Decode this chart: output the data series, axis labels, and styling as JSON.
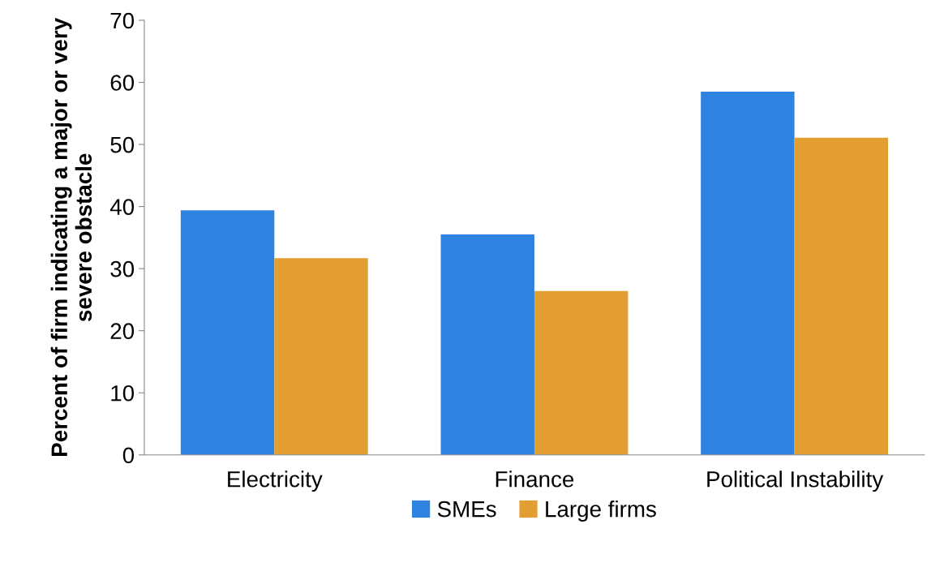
{
  "chart_data": {
    "type": "bar",
    "categories": [
      "Electricity",
      "Finance",
      "Political Instability"
    ],
    "series": [
      {
        "name": "SMEs",
        "color": "#2e83e0",
        "values": [
          39.4,
          35.5,
          58.5
        ]
      },
      {
        "name": "Large firms",
        "color": "#e39e32",
        "values": [
          31.7,
          26.4,
          51.1
        ]
      }
    ],
    "ylabel": "Percent of firm indicating a major or very severe obstacle",
    "ylim": [
      0,
      70
    ],
    "yticks": [
      0,
      10,
      20,
      30,
      40,
      50,
      60,
      70
    ],
    "grid": false,
    "legend": "bottom"
  }
}
